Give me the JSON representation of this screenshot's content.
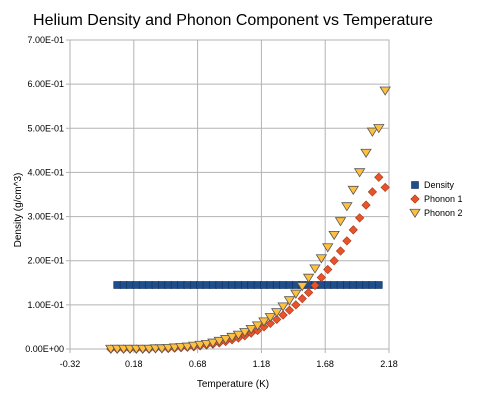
{
  "chart_data": {
    "type": "scatter",
    "title": "Helium Density and Phonon Component vs Temperature",
    "xlabel": "Temperature (K)",
    "ylabel": "Density (g/cm^3)",
    "xlim": [
      -0.32,
      2.18
    ],
    "ylim": [
      0,
      0.7
    ],
    "x_ticks": [
      "-0.32",
      "0.18",
      "0.68",
      "1.18",
      "1.68",
      "2.18"
    ],
    "y_ticks": [
      "0.00E+00",
      "1.00E-01",
      "2.00E-01",
      "3.00E-01",
      "4.00E-01",
      "5.00E-01",
      "6.00E-01",
      "7.00E-01"
    ],
    "grid": true,
    "legend_position": "right",
    "series": [
      {
        "name": "Density",
        "marker": "square",
        "color": "#1f4e8c",
        "x": [
          0.05,
          0.1,
          0.15,
          0.2,
          0.25,
          0.3,
          0.35,
          0.4,
          0.45,
          0.5,
          0.55,
          0.6,
          0.65,
          0.7,
          0.75,
          0.8,
          0.85,
          0.9,
          0.95,
          1.0,
          1.05,
          1.1,
          1.15,
          1.2,
          1.25,
          1.3,
          1.35,
          1.4,
          1.45,
          1.5,
          1.55,
          1.6,
          1.65,
          1.7,
          1.75,
          1.8,
          1.85,
          1.9,
          1.95,
          2.0,
          2.05,
          2.1
        ],
        "y": [
          0.145,
          0.145,
          0.145,
          0.145,
          0.145,
          0.145,
          0.145,
          0.145,
          0.145,
          0.145,
          0.145,
          0.145,
          0.145,
          0.145,
          0.145,
          0.145,
          0.145,
          0.145,
          0.145,
          0.145,
          0.145,
          0.145,
          0.145,
          0.145,
          0.145,
          0.145,
          0.145,
          0.145,
          0.145,
          0.145,
          0.145,
          0.145,
          0.145,
          0.145,
          0.145,
          0.145,
          0.145,
          0.145,
          0.145,
          0.145,
          0.145,
          0.145
        ]
      },
      {
        "name": "Phonon 1",
        "marker": "diamond",
        "color": "#e8542a",
        "x": [
          0.0,
          0.05,
          0.1,
          0.15,
          0.2,
          0.25,
          0.3,
          0.35,
          0.4,
          0.45,
          0.5,
          0.55,
          0.6,
          0.65,
          0.7,
          0.75,
          0.8,
          0.85,
          0.9,
          0.95,
          1.0,
          1.05,
          1.1,
          1.15,
          1.2,
          1.25,
          1.3,
          1.35,
          1.4,
          1.45,
          1.5,
          1.55,
          1.6,
          1.65,
          1.7,
          1.75,
          1.8,
          1.85,
          1.9,
          1.95,
          2.0,
          2.05,
          2.1,
          2.15
        ],
        "y": [
          0.0,
          0.0,
          0.0,
          0.0,
          0.0,
          0.0,
          0.0,
          0.001,
          0.001,
          0.001,
          0.002,
          0.003,
          0.004,
          0.005,
          0.007,
          0.009,
          0.011,
          0.014,
          0.017,
          0.021,
          0.025,
          0.03,
          0.036,
          0.042,
          0.05,
          0.058,
          0.067,
          0.077,
          0.088,
          0.1,
          0.114,
          0.128,
          0.144,
          0.162,
          0.18,
          0.2,
          0.222,
          0.245,
          0.27,
          0.297,
          0.326,
          0.356,
          0.389,
          0.366
        ]
      },
      {
        "name": "Phonon 2",
        "marker": "triangle-down",
        "color": "#ffc040",
        "x": [
          0.0,
          0.05,
          0.1,
          0.15,
          0.2,
          0.25,
          0.3,
          0.35,
          0.4,
          0.45,
          0.5,
          0.55,
          0.6,
          0.65,
          0.7,
          0.75,
          0.8,
          0.85,
          0.9,
          0.95,
          1.0,
          1.05,
          1.1,
          1.15,
          1.2,
          1.25,
          1.3,
          1.35,
          1.4,
          1.45,
          1.5,
          1.55,
          1.6,
          1.65,
          1.7,
          1.75,
          1.8,
          1.85,
          1.9,
          1.95,
          2.0,
          2.05,
          2.1,
          2.15
        ],
        "y": [
          0.0,
          0.0,
          0.0,
          0.0,
          0.0,
          0.0,
          0.0,
          0.001,
          0.001,
          0.002,
          0.003,
          0.004,
          0.005,
          0.007,
          0.009,
          0.011,
          0.014,
          0.018,
          0.022,
          0.027,
          0.032,
          0.038,
          0.045,
          0.053,
          0.062,
          0.072,
          0.083,
          0.096,
          0.11,
          0.125,
          0.142,
          0.161,
          0.182,
          0.205,
          0.23,
          0.258,
          0.289,
          0.323,
          0.36,
          0.4,
          0.444,
          0.492,
          0.5,
          0.585
        ]
      }
    ]
  }
}
